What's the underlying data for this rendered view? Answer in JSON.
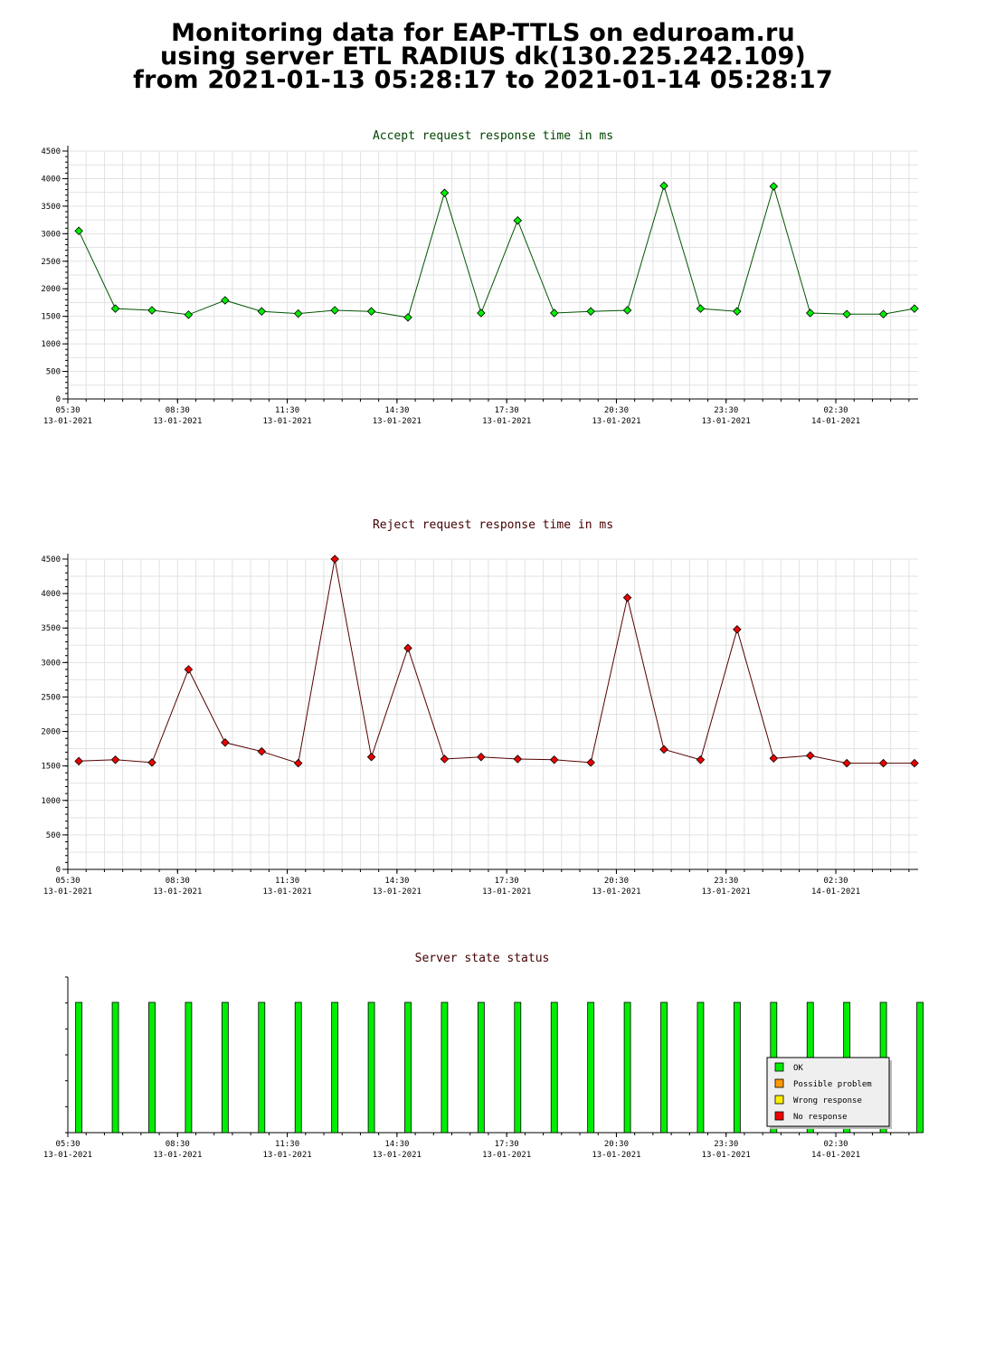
{
  "header": {
    "line1": "Monitoring data for EAP-TTLS on eduroam.ru",
    "line2": "using server ETL RADIUS dk(130.225.242.109)",
    "line3": "from 2021-01-13 05:28:17 to 2021-01-14 05:28:17"
  },
  "chart_data": [
    {
      "type": "line",
      "title": "Accept request response time in ms",
      "title_color": "#004400",
      "line_color": "#005500",
      "marker_color": "#00ee00",
      "ylim": [
        0,
        4500
      ],
      "yticks": [
        0,
        500,
        1000,
        1500,
        2000,
        2500,
        3000,
        3500,
        4000,
        4500
      ],
      "grid": true,
      "xlim": [
        5.5,
        28.75
      ],
      "xticks": [
        {
          "x": 5.5,
          "time": "05:30",
          "date": "13-01-2021"
        },
        {
          "x": 8.5,
          "time": "08:30",
          "date": "13-01-2021"
        },
        {
          "x": 11.5,
          "time": "11:30",
          "date": "13-01-2021"
        },
        {
          "x": 14.5,
          "time": "14:30",
          "date": "13-01-2021"
        },
        {
          "x": 17.5,
          "time": "17:30",
          "date": "13-01-2021"
        },
        {
          "x": 20.5,
          "time": "20:30",
          "date": "13-01-2021"
        },
        {
          "x": 23.5,
          "time": "23:30",
          "date": "13-01-2021"
        },
        {
          "x": 26.5,
          "time": "02:30",
          "date": "14-01-2021"
        }
      ],
      "x": [
        5.8,
        6.8,
        7.8,
        8.8,
        9.8,
        10.8,
        11.8,
        12.8,
        13.8,
        14.8,
        15.8,
        16.8,
        17.8,
        18.8,
        19.8,
        20.8,
        21.8,
        22.8,
        23.8,
        24.8,
        25.8,
        26.8,
        27.8,
        28.65
      ],
      "values": [
        3050,
        1640,
        1610,
        1530,
        1790,
        1590,
        1550,
        1610,
        1590,
        1480,
        3740,
        1560,
        3240,
        1560,
        1590,
        1610,
        3870,
        1640,
        1590,
        3860,
        1560,
        1540,
        1540,
        1640
      ]
    },
    {
      "type": "line",
      "title": "Reject request response time in ms",
      "title_color": "#440000",
      "line_color": "#550000",
      "marker_color": "#ee0000",
      "ylim": [
        0,
        4500
      ],
      "yticks": [
        0,
        500,
        1000,
        1500,
        2000,
        2500,
        3000,
        3500,
        4000,
        4500
      ],
      "grid": true,
      "xlim": [
        5.5,
        28.75
      ],
      "xticks": [
        {
          "x": 5.5,
          "time": "05:30",
          "date": "13-01-2021"
        },
        {
          "x": 8.5,
          "time": "08:30",
          "date": "13-01-2021"
        },
        {
          "x": 11.5,
          "time": "11:30",
          "date": "13-01-2021"
        },
        {
          "x": 14.5,
          "time": "14:30",
          "date": "13-01-2021"
        },
        {
          "x": 17.5,
          "time": "17:30",
          "date": "13-01-2021"
        },
        {
          "x": 20.5,
          "time": "20:30",
          "date": "13-01-2021"
        },
        {
          "x": 23.5,
          "time": "23:30",
          "date": "13-01-2021"
        },
        {
          "x": 26.5,
          "time": "02:30",
          "date": "14-01-2021"
        }
      ],
      "x": [
        5.8,
        6.8,
        7.8,
        8.8,
        9.8,
        10.8,
        11.8,
        12.8,
        13.8,
        14.8,
        15.8,
        16.8,
        17.8,
        18.8,
        19.8,
        20.8,
        21.8,
        22.8,
        23.8,
        24.8,
        25.8,
        26.8,
        27.8,
        28.65
      ],
      "values": [
        1570,
        1590,
        1550,
        2900,
        1840,
        1710,
        1540,
        4500,
        1630,
        3210,
        1600,
        1630,
        1600,
        1590,
        1550,
        3940,
        1740,
        1590,
        3480,
        1610,
        1650,
        1540,
        1540,
        1540
      ]
    },
    {
      "type": "bar",
      "title": "Server state status",
      "title_color": "#440000",
      "grid": false,
      "xlim": [
        5.5,
        28.75
      ],
      "xticks": [
        {
          "x": 5.5,
          "time": "05:30",
          "date": "13-01-2021"
        },
        {
          "x": 8.5,
          "time": "08:30",
          "date": "13-01-2021"
        },
        {
          "x": 11.5,
          "time": "11:30",
          "date": "13-01-2021"
        },
        {
          "x": 14.5,
          "time": "14:30",
          "date": "13-01-2021"
        },
        {
          "x": 17.5,
          "time": "17:30",
          "date": "13-01-2021"
        },
        {
          "x": 20.5,
          "time": "20:30",
          "date": "13-01-2021"
        },
        {
          "x": 23.5,
          "time": "23:30",
          "date": "13-01-2021"
        },
        {
          "x": 26.5,
          "time": "02:30",
          "date": "14-01-2021"
        }
      ],
      "x": [
        5.8,
        6.8,
        7.8,
        8.8,
        9.8,
        10.8,
        11.8,
        12.8,
        13.8,
        14.8,
        15.8,
        16.8,
        17.8,
        18.8,
        19.8,
        20.8,
        21.8,
        22.8,
        23.8,
        24.8,
        25.8,
        26.8,
        27.8,
        28.8
      ],
      "status": [
        "OK",
        "OK",
        "OK",
        "OK",
        "OK",
        "OK",
        "OK",
        "OK",
        "OK",
        "OK",
        "OK",
        "OK",
        "OK",
        "OK",
        "OK",
        "OK",
        "OK",
        "OK",
        "OK",
        "OK",
        "OK",
        "OK",
        "OK",
        "OK"
      ],
      "legend_position": "bottom-right",
      "legend": [
        {
          "label": "OK",
          "color": "#00ee00"
        },
        {
          "label": "Possible problem",
          "color": "#ff9900"
        },
        {
          "label": "Wrong response",
          "color": "#ffee00"
        },
        {
          "label": "No response",
          "color": "#ee0000"
        }
      ]
    }
  ]
}
